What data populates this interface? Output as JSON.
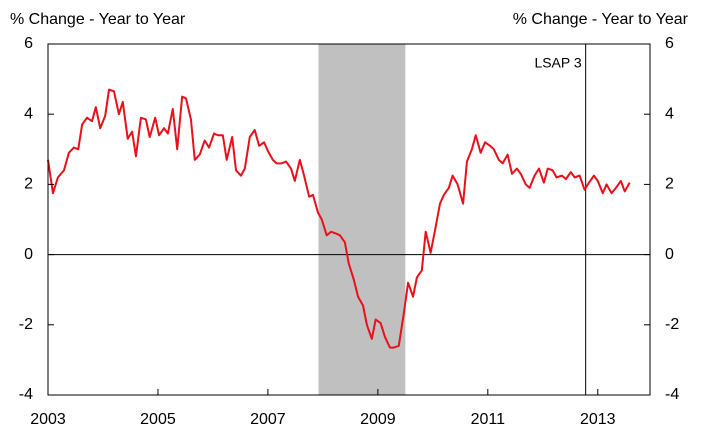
{
  "chart_data": {
    "type": "line",
    "ylabel": "% Change - Year to Year",
    "y2label": "% Change - Year to Year",
    "x": [
      2003.0,
      2003.09,
      2003.18,
      2003.29,
      2003.38,
      2003.47,
      2003.55,
      2003.62,
      2003.71,
      2003.8,
      2003.87,
      2003.95,
      2004.04,
      2004.11,
      2004.2,
      2004.29,
      2004.36,
      2004.45,
      2004.53,
      2004.6,
      2004.69,
      2004.78,
      2004.85,
      2004.95,
      2005.02,
      2005.11,
      2005.18,
      2005.27,
      2005.35,
      2005.44,
      2005.51,
      2005.6,
      2005.67,
      2005.76,
      2005.85,
      2005.93,
      2006.02,
      2006.09,
      2006.18,
      2006.25,
      2006.35,
      2006.42,
      2006.51,
      2006.58,
      2006.67,
      2006.76,
      2006.84,
      2006.93,
      2007.0,
      2007.09,
      2007.16,
      2007.25,
      2007.33,
      2007.42,
      2007.49,
      2007.58,
      2007.65,
      2007.75,
      2007.82,
      2007.91,
      2007.98,
      2008.07,
      2008.15,
      2008.24,
      2008.31,
      2008.4,
      2008.47,
      2008.56,
      2008.64,
      2008.73,
      2008.8,
      2008.89,
      2008.96,
      2009.05,
      2009.13,
      2009.22,
      2009.29,
      2009.38,
      2009.47,
      2009.55,
      2009.64,
      2009.71,
      2009.8,
      2009.87,
      2009.96,
      2010.04,
      2010.13,
      2010.2,
      2010.29,
      2010.36,
      2010.45,
      2010.55,
      2010.62,
      2010.71,
      2010.78,
      2010.87,
      2010.95,
      2011.04,
      2011.11,
      2011.2,
      2011.27,
      2011.36,
      2011.44,
      2011.53,
      2011.6,
      2011.69,
      2011.76,
      2011.85,
      2011.93,
      2012.02,
      2012.09,
      2012.18,
      2012.25,
      2012.35,
      2012.42,
      2012.51,
      2012.58,
      2012.67,
      2012.76,
      2012.84,
      2012.93,
      2013.0,
      2013.09,
      2013.16,
      2013.25,
      2013.33,
      2013.42,
      2013.49,
      2013.58
    ],
    "series": [
      {
        "color": "#e8101a",
        "values": [
          2.7,
          1.75,
          2.2,
          2.4,
          2.9,
          3.05,
          3.0,
          3.7,
          3.9,
          3.8,
          4.2,
          3.6,
          3.95,
          4.7,
          4.65,
          4.0,
          4.35,
          3.3,
          3.5,
          2.8,
          3.9,
          3.85,
          3.35,
          3.9,
          3.4,
          3.6,
          3.45,
          4.15,
          3.0,
          4.5,
          4.45,
          3.85,
          2.7,
          2.85,
          3.25,
          3.05,
          3.45,
          3.4,
          3.4,
          2.7,
          3.35,
          2.4,
          2.25,
          2.45,
          3.35,
          3.55,
          3.1,
          3.2,
          2.95,
          2.7,
          2.6,
          2.6,
          2.65,
          2.45,
          2.1,
          2.7,
          2.3,
          1.65,
          1.7,
          1.2,
          1.0,
          0.55,
          0.65,
          0.6,
          0.55,
          0.35,
          -0.25,
          -0.7,
          -1.2,
          -1.45,
          -2.0,
          -2.4,
          -1.85,
          -1.95,
          -2.35,
          -2.65,
          -2.65,
          -2.6,
          -1.7,
          -0.8,
          -1.2,
          -0.65,
          -0.45,
          0.65,
          0.05,
          0.7,
          1.45,
          1.7,
          1.9,
          2.25,
          2.0,
          1.45,
          2.65,
          3.0,
          3.4,
          2.9,
          3.2,
          3.1,
          3.0,
          2.7,
          2.6,
          2.85,
          2.3,
          2.45,
          2.3,
          2.0,
          1.9,
          2.25,
          2.45,
          2.05,
          2.45,
          2.4,
          2.2,
          2.25,
          2.15,
          2.35,
          2.2,
          2.25,
          1.85,
          2.05,
          2.25,
          2.1,
          1.75,
          2.0,
          1.75,
          1.9,
          2.1,
          1.8,
          2.05
        ]
      }
    ],
    "xlim": [
      2003,
      2013.95
    ],
    "xticks": [
      2003,
      2005,
      2007,
      2009,
      2011,
      2013
    ],
    "ylim": [
      -4,
      6
    ],
    "yticks": [
      -4,
      -2,
      0,
      2,
      4,
      6
    ],
    "y2lim": [
      -4,
      6
    ],
    "y2ticks": [
      -4,
      -2,
      0,
      2,
      4,
      6
    ],
    "reference_line": 0,
    "shaded_region": {
      "x": [
        2007.92,
        2009.5
      ],
      "color": "#c0c0c0"
    },
    "vline": {
      "x": 2012.78,
      "label": "LSAP 3"
    }
  }
}
